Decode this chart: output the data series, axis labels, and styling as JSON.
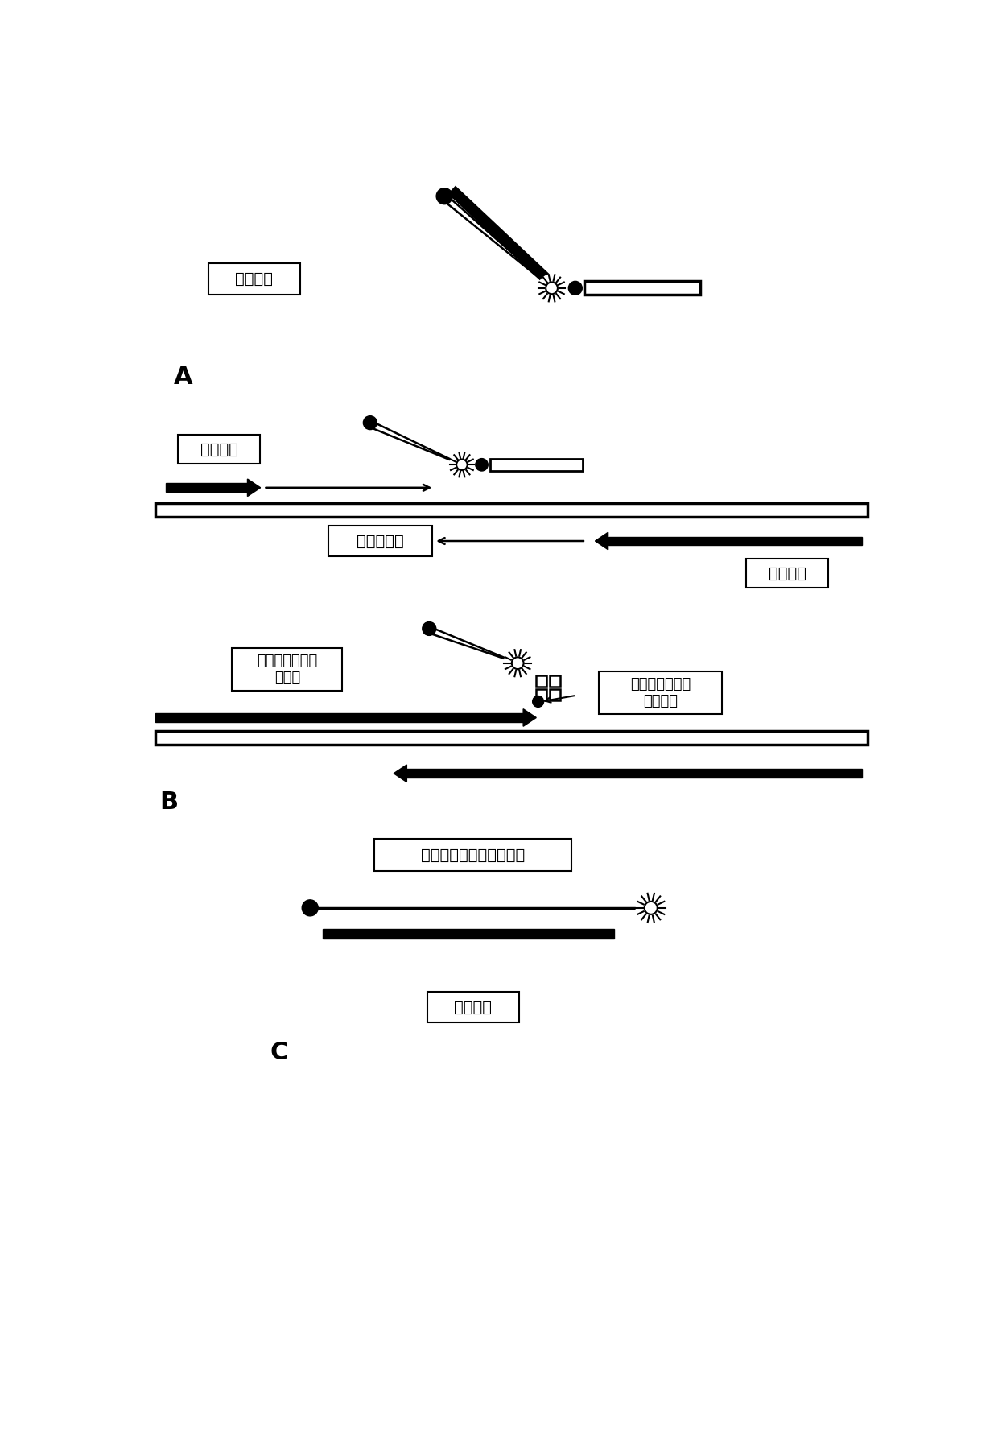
{
  "bg_color": "#ffffff",
  "text_color": "#000000",
  "label_A": "A",
  "label_B": "B",
  "label_C": "C",
  "box_jiance_tanshen": "检测探针",
  "box_zhengxiang": "正向引物",
  "box_jiance_baxulie": "检测靶序列",
  "box_fuxiang": "反向引物",
  "box_qiege_yiguang_line1": "切割后游离的荧",
  "box_qiege_yiguang_line2": "光探针",
  "box_bei_qiege_line1": "被切割后游离的",
  "box_bei_qiege_line2": "察核苷酸",
  "box_shique_mieji": "失去淤灯基团的荧光探针",
  "box_jiance_tanshen2": "检测探针"
}
